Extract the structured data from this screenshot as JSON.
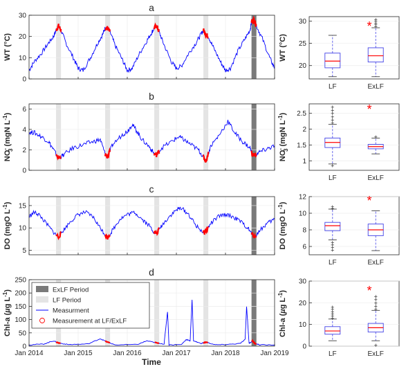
{
  "colors": {
    "measurement": "#0000ff",
    "lf_ex": "#ff0000",
    "lf_band": "#e4e4e4",
    "exlf_band": "#7a7a7a",
    "box": "#4040e6",
    "median": "#ff0000",
    "outlier": "#ff0000",
    "sig": "#ff0000"
  },
  "chart_data": [
    {
      "type": "line",
      "panel": "a",
      "ylabel": "WT (°C)",
      "ylim": [
        0,
        30
      ],
      "yticks": [
        "0",
        "10",
        "20",
        "30"
      ],
      "xticks": [],
      "lf_periods": [
        [
          2014.55,
          2014.65
        ],
        [
          2015.55,
          2015.65
        ],
        [
          2016.55,
          2016.65
        ],
        [
          2017.55,
          2017.65
        ]
      ],
      "exlf_periods": [
        [
          2018.53,
          2018.63
        ]
      ],
      "series": [
        {
          "x": [
            2014.0,
            2014.1,
            2014.25,
            2014.4,
            2014.5,
            2014.55,
            2014.6,
            2014.65,
            2014.75,
            2014.9,
            2015.0,
            2015.1,
            2015.25,
            2015.4,
            2015.5,
            2015.55,
            2015.6,
            2015.65,
            2015.75,
            2015.9,
            2016.0,
            2016.1,
            2016.25,
            2016.4,
            2016.5,
            2016.55,
            2016.6,
            2016.65,
            2016.75,
            2016.9,
            2017.0,
            2017.1,
            2017.25,
            2017.4,
            2017.5,
            2017.55,
            2017.6,
            2017.65,
            2017.75,
            2017.9,
            2018.0,
            2018.1,
            2018.25,
            2018.4,
            2018.5,
            2018.53,
            2018.58,
            2018.63,
            2018.75,
            2018.9,
            2019.0
          ],
          "y": [
            4,
            8,
            12,
            17,
            20,
            23,
            25,
            23,
            17,
            10,
            5,
            4,
            10,
            17,
            21,
            24,
            24,
            22,
            16,
            9,
            4,
            5,
            12,
            18,
            22,
            24,
            25,
            22,
            16,
            8,
            5,
            6,
            12,
            17,
            21,
            23,
            21,
            20,
            15,
            8,
            4,
            5,
            13,
            19,
            23,
            27,
            28,
            25,
            19,
            10,
            5
          ]
        }
      ]
    },
    {
      "type": "line",
      "panel": "b",
      "ylabel": "NO3- (mgN L-1)",
      "ylim": [
        0,
        6.5
      ],
      "yticks": [
        "0",
        "2",
        "4",
        "6"
      ],
      "xticks": [],
      "lf_periods": [
        [
          2014.55,
          2014.65
        ],
        [
          2015.55,
          2015.65
        ],
        [
          2016.55,
          2016.65
        ],
        [
          2017.55,
          2017.65
        ]
      ],
      "exlf_periods": [
        [
          2018.53,
          2018.63
        ]
      ],
      "series": [
        {
          "x": [
            2014.0,
            2014.1,
            2014.25,
            2014.4,
            2014.5,
            2014.6,
            2014.7,
            2014.9,
            2015.1,
            2015.3,
            2015.45,
            2015.55,
            2015.6,
            2015.7,
            2015.9,
            2016.0,
            2016.1,
            2016.2,
            2016.3,
            2016.45,
            2016.55,
            2016.6,
            2016.7,
            2016.9,
            2017.05,
            2017.15,
            2017.3,
            2017.45,
            2017.55,
            2017.6,
            2017.7,
            2017.85,
            2018.05,
            2018.2,
            2018.35,
            2018.5,
            2018.55,
            2018.6,
            2018.7,
            2018.85,
            2019.0
          ],
          "y": [
            3.7,
            3.7,
            3.3,
            2.8,
            2.0,
            1.2,
            1.5,
            2.2,
            2.5,
            2.8,
            3.0,
            1.6,
            1.3,
            2.5,
            3.5,
            3.8,
            4.5,
            3.8,
            3.0,
            2.3,
            1.6,
            1.5,
            2.2,
            2.8,
            3.3,
            3.0,
            2.5,
            2.0,
            1.3,
            0.9,
            2.4,
            3.3,
            4.8,
            3.6,
            2.8,
            2.2,
            1.5,
            1.5,
            1.8,
            2.1,
            2.4
          ]
        }
      ]
    },
    {
      "type": "line",
      "panel": "c",
      "ylabel": "DO (mgO L-1)",
      "ylim": [
        4,
        17
      ],
      "yticks": [
        "5",
        "10",
        "15"
      ],
      "xticks": [],
      "lf_periods": [
        [
          2014.55,
          2014.65
        ],
        [
          2015.55,
          2015.65
        ],
        [
          2016.55,
          2016.65
        ],
        [
          2017.55,
          2017.65
        ]
      ],
      "exlf_periods": [
        [
          2018.53,
          2018.63
        ]
      ],
      "series": [
        {
          "x": [
            2014.0,
            2014.1,
            2014.2,
            2014.35,
            2014.5,
            2014.6,
            2014.7,
            2014.85,
            2015.0,
            2015.15,
            2015.3,
            2015.45,
            2015.55,
            2015.6,
            2015.7,
            2015.85,
            2016.0,
            2016.15,
            2016.3,
            2016.45,
            2016.55,
            2016.6,
            2016.7,
            2016.85,
            2017.0,
            2017.1,
            2017.25,
            2017.4,
            2017.55,
            2017.6,
            2017.7,
            2017.85,
            2018.0,
            2018.15,
            2018.3,
            2018.45,
            2018.55,
            2018.6,
            2018.7,
            2018.85,
            2019.0
          ],
          "y": [
            12.5,
            13.5,
            13.0,
            11.0,
            9.0,
            8.0,
            9.5,
            11.5,
            13.0,
            13.5,
            12.5,
            10.0,
            8.5,
            7.8,
            9.5,
            12.0,
            13.0,
            13.5,
            12.0,
            10.5,
            9.0,
            8.8,
            10.5,
            12.5,
            14.0,
            14.5,
            13.0,
            10.5,
            9.0,
            9.2,
            11.0,
            12.5,
            13.0,
            12.5,
            11.5,
            10.0,
            8.5,
            8.0,
            9.5,
            11.0,
            12.0
          ]
        }
      ]
    },
    {
      "type": "line",
      "panel": "d",
      "ylabel": "Chl-a (µg L-1)",
      "ylim": [
        0,
        250
      ],
      "yticks": [
        "0",
        "50",
        "100",
        "150",
        "200",
        "250"
      ],
      "xticks": [
        "Jan 2014",
        "Jan 2015",
        "Jan 2016",
        "Jan 2017",
        "Jan 2018",
        "Jan 2019"
      ],
      "xlabel": "Time",
      "lf_periods": [
        [
          2014.55,
          2014.65
        ],
        [
          2015.55,
          2015.65
        ],
        [
          2016.55,
          2016.65
        ],
        [
          2017.55,
          2017.65
        ]
      ],
      "exlf_periods": [
        [
          2018.53,
          2018.63
        ]
      ],
      "legend": [
        "ExLF Period",
        "LF Period",
        "Measurment",
        "Measurement at LF/ExLF"
      ],
      "series": [
        {
          "x": [
            2014.0,
            2014.3,
            2014.5,
            2014.6,
            2014.8,
            2015.2,
            2015.45,
            2015.6,
            2015.75,
            2016.2,
            2016.4,
            2016.6,
            2016.75,
            2016.82,
            2016.85,
            2017.1,
            2017.2,
            2017.28,
            2017.32,
            2017.35,
            2017.5,
            2017.6,
            2017.8,
            2018.0,
            2018.3,
            2018.4,
            2018.43,
            2018.48,
            2018.55,
            2018.6,
            2018.7,
            2019.0
          ],
          "y": [
            5,
            8,
            20,
            12,
            6,
            8,
            28,
            15,
            5,
            6,
            20,
            12,
            8,
            130,
            5,
            6,
            25,
            20,
            175,
            20,
            10,
            15,
            5,
            6,
            10,
            25,
            150,
            10,
            20,
            10,
            5,
            4
          ]
        }
      ]
    },
    {
      "type": "box",
      "panel": "a",
      "ylabel": "WT (°C)",
      "ylim": [
        17,
        31
      ],
      "yticks": [
        "20",
        "25",
        "30"
      ],
      "categories": [
        "LF",
        "ExLF"
      ],
      "boxes": [
        {
          "whisker_low": 17.5,
          "q1": 19.5,
          "median": 21.0,
          "q3": 22.8,
          "whisker_high": 26.8
        },
        {
          "whisker_low": 17.5,
          "q1": 20.8,
          "median": 22.2,
          "q3": 24.0,
          "whisker_high": 28.5
        }
      ],
      "outliers_high": [
        null,
        [
          28.8,
          29.2,
          29.6,
          30.0,
          30.4
        ]
      ],
      "outliers_low": [
        null,
        null
      ],
      "significance": "*"
    },
    {
      "type": "box",
      "panel": "b",
      "ylabel": "NO3- (mgN L-1)",
      "ylim": [
        0.7,
        2.8
      ],
      "yticks": [
        "1",
        "1.5",
        "2",
        "2.5"
      ],
      "categories": [
        "LF",
        "ExLF"
      ],
      "boxes": [
        {
          "whisker_low": 0.9,
          "q1": 1.42,
          "median": 1.58,
          "q3": 1.72,
          "whisker_high": 2.15
        },
        {
          "whisker_low": 1.22,
          "q1": 1.38,
          "median": 1.45,
          "q3": 1.52,
          "whisker_high": 1.72
        }
      ],
      "outliers_high": [
        [
          2.2,
          2.3,
          2.4,
          2.5,
          2.6,
          2.7
        ],
        [
          1.76
        ]
      ],
      "outliers_low": [
        [
          0.85
        ],
        null
      ],
      "significance": "*"
    },
    {
      "type": "box",
      "panel": "c",
      "ylabel": "DO (mgO L-1)",
      "ylim": [
        5,
        12
      ],
      "yticks": [
        "6",
        "8",
        "10",
        "12"
      ],
      "categories": [
        "LF",
        "ExLF"
      ],
      "boxes": [
        {
          "whisker_low": 6.8,
          "q1": 7.9,
          "median": 8.5,
          "q3": 8.9,
          "whisker_high": 10.5
        },
        {
          "whisker_low": 5.5,
          "q1": 7.3,
          "median": 8.0,
          "q3": 8.7,
          "whisker_high": 10.3
        }
      ],
      "outliers_high": [
        [
          10.6,
          10.8
        ],
        null
      ],
      "outliers_low": [
        [
          5.6,
          5.9,
          6.2,
          6.5
        ],
        null
      ],
      "significance": "*"
    },
    {
      "type": "box",
      "panel": "d",
      "ylabel": "Chl-a (µg L-1)",
      "ylim": [
        0,
        30
      ],
      "yticks": [
        "0",
        "10",
        "20",
        "30"
      ],
      "categories": [
        "LF",
        "ExLF"
      ],
      "boxes": [
        {
          "whisker_low": 2.5,
          "q1": 5.5,
          "median": 7.0,
          "q3": 9.0,
          "whisker_high": 12.5
        },
        {
          "whisker_low": 2.5,
          "q1": 6.5,
          "median": 8.5,
          "q3": 10.5,
          "whisker_high": 16.5
        }
      ],
      "outliers_high": [
        [
          13.0,
          14.0,
          15.0,
          16.0,
          17.0,
          18.0
        ],
        [
          17.0,
          18.5,
          20.0,
          21.5,
          23.0
        ]
      ],
      "outliers_low": [
        null,
        [
          0.5
        ]
      ],
      "significance": "*"
    }
  ],
  "panel_letters": [
    "a",
    "b",
    "c",
    "d"
  ],
  "labels": {
    "wt": "WT (°C)",
    "no3_main": "NO",
    "no3_sub": "3",
    "no3_sup": "-",
    "no3_unit": " (mgN L",
    "no3_exp": "-1",
    "no3_close": ")",
    "do_main": "DO (mgO L",
    "do_exp": "-1",
    "do_close": ")",
    "chl_main": "Chl-a (",
    "chl_mu": "µ",
    "chl_unit": "g L",
    "chl_exp": "-1",
    "chl_close": ")",
    "xlabel": "Time"
  }
}
